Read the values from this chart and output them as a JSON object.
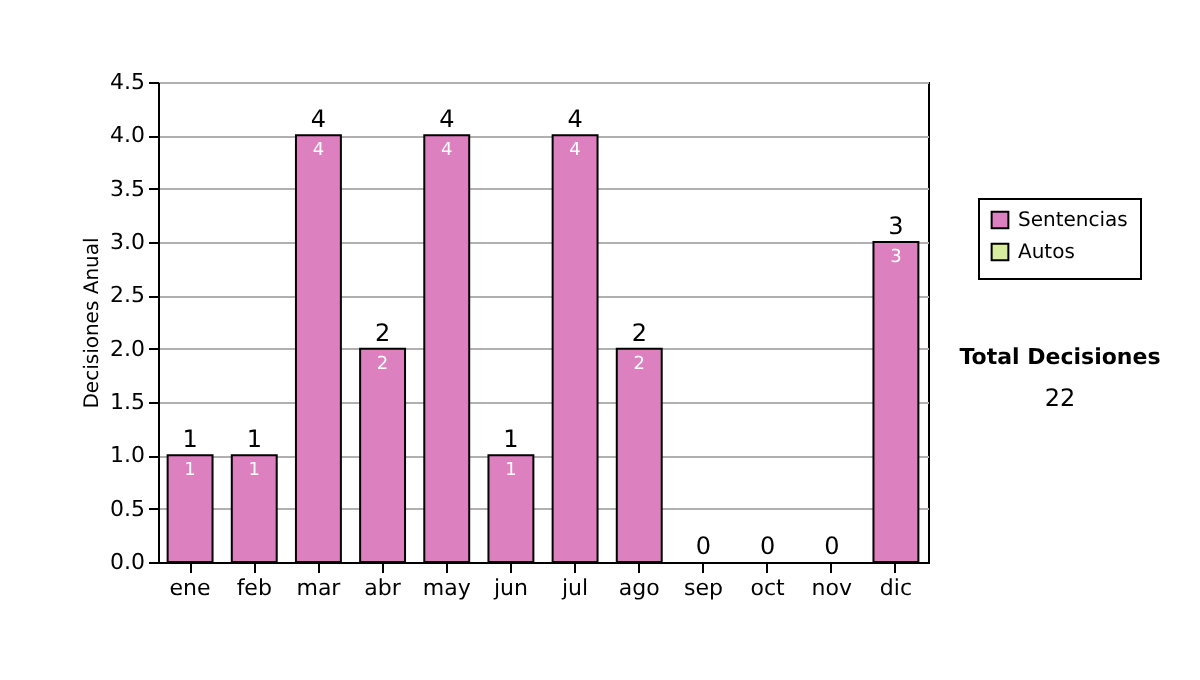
{
  "chart_data": {
    "type": "bar",
    "stacked": true,
    "ylabel": "Decisiones Anual",
    "categories": [
      "ene",
      "feb",
      "mar",
      "abr",
      "may",
      "jun",
      "jul",
      "ago",
      "sep",
      "oct",
      "nov",
      "dic"
    ],
    "series": [
      {
        "name": "Sentencias",
        "color": "#dd80c0",
        "values": [
          1,
          1,
          4,
          2,
          4,
          1,
          4,
          2,
          0,
          0,
          0,
          3
        ],
        "value_labels": [
          "1",
          "1",
          "4",
          "2",
          "4",
          "1",
          "4",
          "2",
          null,
          null,
          null,
          "3"
        ]
      },
      {
        "name": "Autos",
        "color": "#d8eca0",
        "values": [
          0,
          0,
          0,
          0,
          0,
          0,
          0,
          0,
          0,
          0,
          0,
          0
        ]
      }
    ],
    "totals": [
      "1",
      "1",
      "4",
      "2",
      "4",
      "1",
      "4",
      "2",
      "0",
      "0",
      "0",
      "3"
    ],
    "ylim": [
      0,
      4.5
    ],
    "yticks": [
      {
        "value": 0,
        "label": "0.0"
      },
      {
        "value": 0.5,
        "label": "0.5"
      },
      {
        "value": 1,
        "label": "1.0"
      },
      {
        "value": 1.5,
        "label": "1.5"
      },
      {
        "value": 2,
        "label": "2.0"
      },
      {
        "value": 2.5,
        "label": "2.5"
      },
      {
        "value": 3,
        "label": "3.0"
      },
      {
        "value": 3.5,
        "label": "3.5"
      },
      {
        "value": 4,
        "label": "4.0"
      },
      {
        "value": 4.5,
        "label": "4.5"
      }
    ],
    "grid": "y",
    "legend": "right",
    "annotations": [
      "Total Decisiones",
      "22"
    ]
  }
}
